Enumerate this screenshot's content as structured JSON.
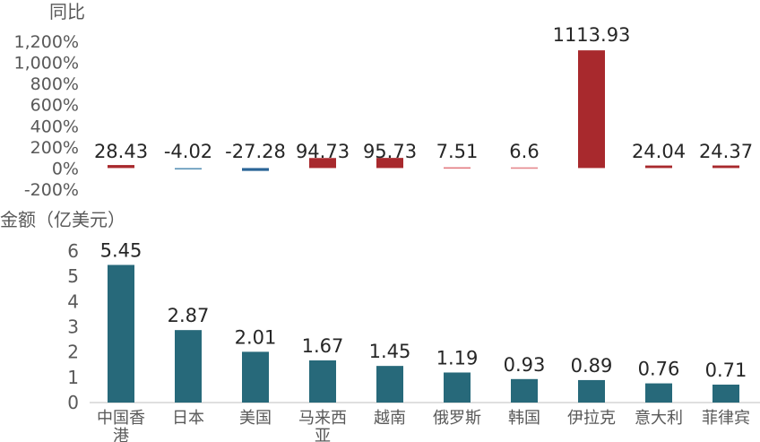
{
  "chart_data": [
    {
      "type": "bar",
      "title": "",
      "ylabel": "同比",
      "y_ticks": [
        "1,200%",
        "1,000%",
        "800%",
        "600%",
        "400%",
        "200%",
        "0%",
        "-200%"
      ],
      "ylim": [
        -200,
        1200
      ],
      "categories": [
        "中国香港",
        "日本",
        "美国",
        "马来西亚",
        "越南",
        "俄罗斯",
        "韩国",
        "伊拉克",
        "意大利",
        "菲律宾"
      ],
      "values": [
        28.43,
        -4.02,
        -27.28,
        94.73,
        95.73,
        7.51,
        6.6,
        1113.93,
        24.04,
        24.37
      ],
      "labels": [
        "28.43",
        "-4.02",
        "-27.28",
        "94.73",
        "95.73",
        "7.51",
        "6.6",
        "1113.93",
        "24.04",
        "24.37"
      ],
      "bar_colors": [
        "#a8292d",
        "#5b93b6",
        "#2b6597",
        "#a8292d",
        "#a8292d",
        "#e27a80",
        "#e6888d",
        "#a8292d",
        "#a8292d",
        "#a8292d"
      ],
      "grid": false,
      "legend": "none"
    },
    {
      "type": "bar",
      "title": "",
      "ylabel": "金额（亿美元）",
      "y_ticks": [
        "6",
        "5",
        "4",
        "3",
        "2",
        "1",
        "0"
      ],
      "ylim": [
        0,
        6
      ],
      "categories": [
        "中国香港",
        "日本",
        "美国",
        "马来西亚",
        "越南",
        "俄罗斯",
        "韩国",
        "伊拉克",
        "意大利",
        "菲律宾"
      ],
      "x_tick_labels": [
        [
          "中国香",
          "港"
        ],
        [
          "日本"
        ],
        [
          "美国"
        ],
        [
          "马来西",
          "亚"
        ],
        [
          "越南"
        ],
        [
          "俄罗斯"
        ],
        [
          "韩国"
        ],
        [
          "伊拉克"
        ],
        [
          "意大利"
        ],
        [
          "菲律宾"
        ]
      ],
      "values": [
        5.45,
        2.87,
        2.01,
        1.67,
        1.45,
        1.19,
        0.93,
        0.89,
        0.76,
        0.71
      ],
      "labels": [
        "5.45",
        "2.87",
        "2.01",
        "1.67",
        "1.45",
        "1.19",
        "0.93",
        "0.89",
        "0.76",
        "0.71"
      ],
      "bar_color": "#27697a",
      "grid": false,
      "legend": "none"
    }
  ]
}
